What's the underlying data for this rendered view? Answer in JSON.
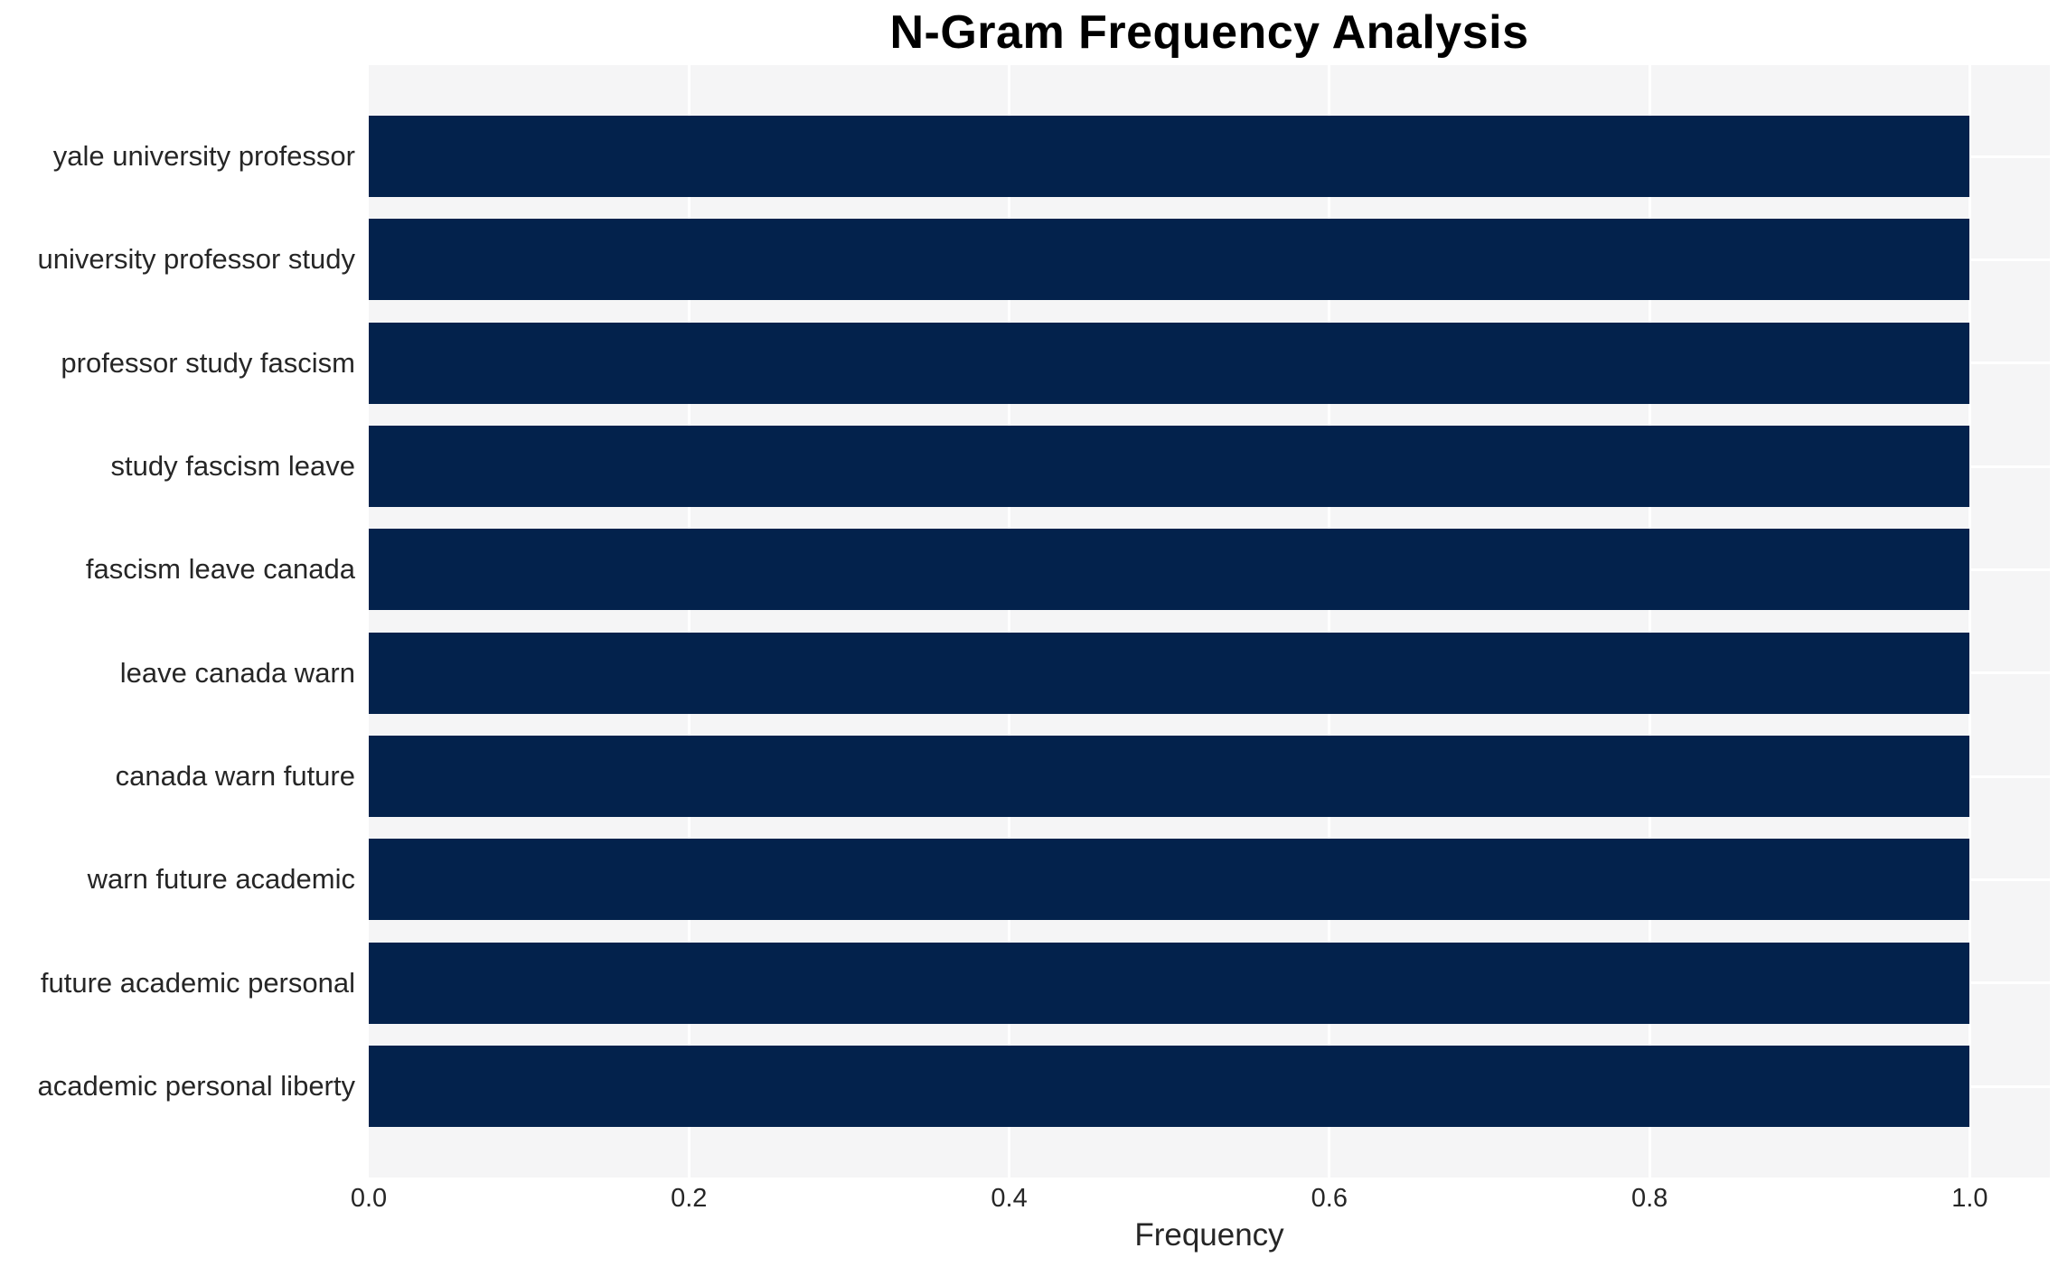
{
  "chart_data": {
    "type": "bar",
    "orientation": "horizontal",
    "title": "N-Gram Frequency Analysis",
    "xlabel": "Frequency",
    "ylabel": "",
    "categories": [
      "yale university professor",
      "university professor study",
      "professor study fascism",
      "study fascism leave",
      "fascism leave canada",
      "leave canada warn",
      "canada warn future",
      "warn future academic",
      "future academic personal",
      "academic personal liberty"
    ],
    "values": [
      1.0,
      1.0,
      1.0,
      1.0,
      1.0,
      1.0,
      1.0,
      1.0,
      1.0,
      1.0
    ],
    "xticks": [
      0.0,
      0.2,
      0.4,
      0.6,
      0.8,
      1.0
    ],
    "xtick_labels": [
      "0.0",
      "0.2",
      "0.4",
      "0.6",
      "0.8",
      "1.0"
    ],
    "xlim": [
      0,
      1.05
    ],
    "grid": true,
    "legend": false,
    "colors": {
      "bar": "#03224c",
      "plot_background": "#f5f5f6",
      "gridline": "#ffffff",
      "title_text": "#000000",
      "axis_text": "#262626",
      "figure_background": "#ffffff"
    }
  }
}
